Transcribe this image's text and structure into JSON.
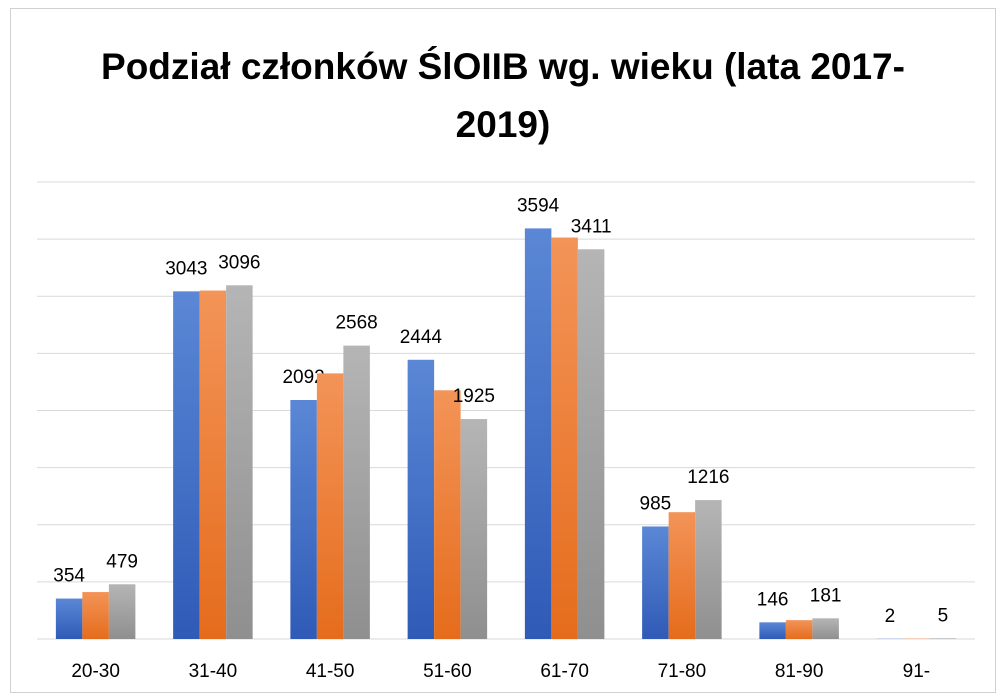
{
  "chart_data": {
    "type": "bar",
    "title": "Podział członków ŚlOIIB wg. wieku (lata 2017-2019)",
    "categories": [
      "20-30",
      "31-40",
      "41-50",
      "51-60",
      "61-70",
      "71-80",
      "81-90",
      "91-"
    ],
    "series": [
      {
        "color": "#4472c4",
        "labels": true,
        "values": [
          354,
          3043,
          2092,
          2444,
          3594,
          985,
          146,
          2
        ]
      },
      {
        "color": "#ed7d31",
        "labels": false,
        "values": [
          411,
          3050,
          2325,
          2177,
          3514,
          1110,
          165,
          3
        ]
      },
      {
        "color": "#a5a5a5",
        "labels": true,
        "values": [
          479,
          3096,
          2568,
          1925,
          3411,
          1216,
          181,
          5
        ]
      }
    ],
    "ylim": [
      0,
      4000
    ],
    "yticks": [
      0,
      500,
      1000,
      1500,
      2000,
      2500,
      3000,
      3500,
      4000
    ],
    "grid": true
  }
}
